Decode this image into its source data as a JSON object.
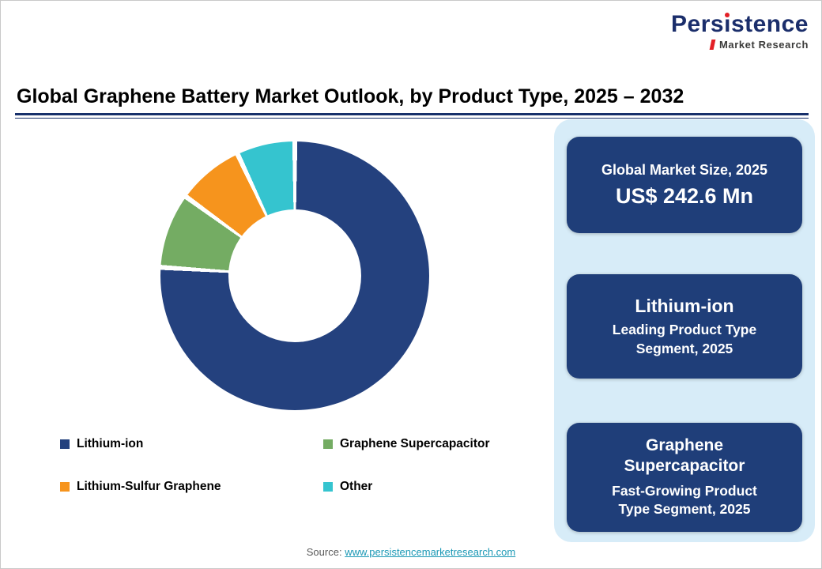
{
  "logo": {
    "brand_part1": "Pers",
    "brand_part2": "i",
    "brand_part3": "stence",
    "subtitle": "Market Research",
    "navy": "#1b2e6b",
    "red": "#e32026"
  },
  "header": {
    "title": "Global Graphene Battery Market Outlook, by Product Type, 2025 – 2032"
  },
  "chart_data": {
    "type": "pie",
    "donut": true,
    "title": "Global Graphene Battery Market Outlook, by Product Type, 2025 – 2032",
    "legend_position": "bottom",
    "slices": [
      {
        "label": "Lithium-ion",
        "value": 76,
        "color": "#24417e"
      },
      {
        "label": "Graphene Supercapacitor",
        "value": 9,
        "color": "#74ac63"
      },
      {
        "label": "Lithium-Sulfur Graphene",
        "value": 8,
        "color": "#f6941d"
      },
      {
        "label": "Other",
        "value": 7,
        "color": "#35c4cf"
      }
    ]
  },
  "panel": {
    "bg": "#d7ecf8",
    "box_bg": "#1f3e79",
    "boxes": [
      {
        "line1": "Global Market Size, 2025",
        "line2": "US$ 242.6 Mn"
      },
      {
        "line1": "Lithium-ion",
        "line2": "Leading Product Type Segment, 2025"
      },
      {
        "line1": "Graphene Supercapacitor",
        "line2": "Fast-Growing Product Type Segment, 2025"
      }
    ]
  },
  "footer": {
    "source_label": "Source:",
    "source_link": "www.persistencemarketresearch.com"
  }
}
